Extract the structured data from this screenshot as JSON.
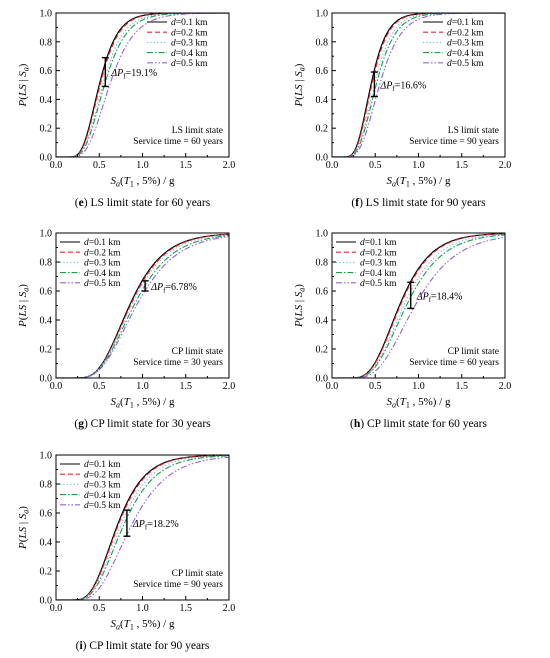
{
  "chart_data": [
    {
      "type": "line",
      "panel_letter": "e",
      "caption": "LS limit state for 60 years",
      "ylabel": "P(LS | Sa)",
      "xlabel": "Sa(T1 , 5%) / g",
      "xlim": [
        0,
        2
      ],
      "ylim": [
        0,
        1
      ],
      "xticks": [
        "0.0",
        "0.5",
        "1.0",
        "1.5",
        "2.0"
      ],
      "yticks": [
        "0.0",
        "0.2",
        "0.4",
        "0.6",
        "0.8",
        "1.0"
      ],
      "legend_position": "top-right",
      "series": [
        {
          "name": "d=0.1 km",
          "color": "#000000",
          "dash": "solid",
          "median": 0.5,
          "beta": 0.33
        },
        {
          "name": "d=0.2 km",
          "color": "#e8262b",
          "dash": "dashed",
          "median": 0.51,
          "beta": 0.33
        },
        {
          "name": "d=0.3 km",
          "color": "#5bc4e6",
          "dash": "dotted",
          "median": 0.54,
          "beta": 0.34
        },
        {
          "name": "d=0.4 km",
          "color": "#1a9e48",
          "dash": "dashdot",
          "median": 0.56,
          "beta": 0.35
        },
        {
          "name": "d=0.5 km",
          "color": "#9b5de5",
          "dash": "dashdotdot",
          "median": 0.62,
          "beta": 0.36
        }
      ],
      "annotation": {
        "label": "ΔPf=19.1%",
        "x": 0.57,
        "y_low": 0.49,
        "y_high": 0.69
      },
      "note_lines": [
        "LS limit state",
        "Service time = 60 years"
      ]
    },
    {
      "type": "line",
      "panel_letter": "f",
      "caption": "LS limit state for 90 years",
      "ylabel": "P(LS | Sa)",
      "xlabel": "Sa(T1 , 5%) / g",
      "xlim": [
        0,
        2
      ],
      "ylim": [
        0,
        1
      ],
      "xticks": [
        "0.0",
        "0.5",
        "1.0",
        "1.5",
        "2.0"
      ],
      "yticks": [
        "0.0",
        "0.2",
        "0.4",
        "0.6",
        "0.8",
        "1.0"
      ],
      "legend_position": "top-right",
      "series": [
        {
          "name": "d=0.1 km",
          "color": "#000000",
          "dash": "solid",
          "median": 0.45,
          "beta": 0.32
        },
        {
          "name": "d=0.2 km",
          "color": "#e8262b",
          "dash": "dashed",
          "median": 0.46,
          "beta": 0.32
        },
        {
          "name": "d=0.3 km",
          "color": "#5bc4e6",
          "dash": "dotted",
          "median": 0.49,
          "beta": 0.33
        },
        {
          "name": "d=0.4 km",
          "color": "#1a9e48",
          "dash": "dashdot",
          "median": 0.51,
          "beta": 0.34
        },
        {
          "name": "d=0.5 km",
          "color": "#9b5de5",
          "dash": "dashdotdot",
          "median": 0.55,
          "beta": 0.35
        }
      ],
      "annotation": {
        "label": "ΔPf=16.6%",
        "x": 0.49,
        "y_low": 0.42,
        "y_high": 0.59
      },
      "note_lines": [
        "LS limit state",
        "Service time = 90 years"
      ]
    },
    {
      "type": "line",
      "panel_letter": "g",
      "caption": "CP limit state for 30 years",
      "ylabel": "P(LS | Sa)",
      "xlabel": "Sa(T1 , 5%) / g",
      "xlim": [
        0,
        2
      ],
      "ylim": [
        0,
        1
      ],
      "xticks": [
        "0.0",
        "0.5",
        "1.0",
        "1.5",
        "2.0"
      ],
      "yticks": [
        "0.0",
        "0.2",
        "0.4",
        "0.6",
        "0.8",
        "1.0"
      ],
      "legend_position": "top-left",
      "series": [
        {
          "name": "d=0.1 km",
          "color": "#000000",
          "dash": "solid",
          "median": 0.85,
          "beta": 0.36
        },
        {
          "name": "d=0.2 km",
          "color": "#e8262b",
          "dash": "dashed",
          "median": 0.86,
          "beta": 0.36
        },
        {
          "name": "d=0.3 km",
          "color": "#5bc4e6",
          "dash": "dotted",
          "median": 0.87,
          "beta": 0.37
        },
        {
          "name": "d=0.4 km",
          "color": "#1a9e48",
          "dash": "dashdot",
          "median": 0.9,
          "beta": 0.38
        },
        {
          "name": "d=0.5 km",
          "color": "#9b5de5",
          "dash": "dashdotdot",
          "median": 0.93,
          "beta": 0.39
        }
      ],
      "annotation": {
        "label": "ΔPf=6.78%",
        "x": 1.03,
        "y_low": 0.6,
        "y_high": 0.67
      },
      "note_lines": [
        "CP limit state",
        "Service time = 30 years"
      ]
    },
    {
      "type": "line",
      "panel_letter": "h",
      "caption": "CP limit state for 60 years",
      "ylabel": "P(LS | Sa)",
      "xlabel": "Sa(T1 , 5%) / g",
      "xlim": [
        0,
        2
      ],
      "ylim": [
        0,
        1
      ],
      "xticks": [
        "0.0",
        "0.5",
        "1.0",
        "1.5",
        "2.0"
      ],
      "yticks": [
        "0.0",
        "0.2",
        "0.4",
        "0.6",
        "0.8",
        "1.0"
      ],
      "legend_position": "top-left",
      "series": [
        {
          "name": "d=0.1 km",
          "color": "#000000",
          "dash": "solid",
          "median": 0.78,
          "beta": 0.36
        },
        {
          "name": "d=0.2 km",
          "color": "#e8262b",
          "dash": "dashed",
          "median": 0.79,
          "beta": 0.36
        },
        {
          "name": "d=0.3 km",
          "color": "#5bc4e6",
          "dash": "dotted",
          "median": 0.83,
          "beta": 0.37
        },
        {
          "name": "d=0.4 km",
          "color": "#1a9e48",
          "dash": "dashdot",
          "median": 0.86,
          "beta": 0.38
        },
        {
          "name": "d=0.5 km",
          "color": "#9b5de5",
          "dash": "dashdotdot",
          "median": 0.96,
          "beta": 0.39
        }
      ],
      "annotation": {
        "label": "ΔPf=18.4%",
        "x": 0.91,
        "y_low": 0.48,
        "y_high": 0.66
      },
      "note_lines": [
        "CP limit state",
        "Service time = 60 years"
      ]
    },
    {
      "type": "line",
      "panel_letter": "i",
      "caption": "CP limit state for 90 years",
      "ylabel": "P(LS | Sa)",
      "xlabel": "Sa(T1 , 5%) / g",
      "xlim": [
        0,
        2
      ],
      "ylim": [
        0,
        1
      ],
      "xticks": [
        "0.0",
        "0.5",
        "1.0",
        "1.5",
        "2.0"
      ],
      "yticks": [
        "0.0",
        "0.2",
        "0.4",
        "0.6",
        "0.8",
        "1.0"
      ],
      "legend_position": "top-left",
      "series": [
        {
          "name": "d=0.1 km",
          "color": "#000000",
          "dash": "solid",
          "median": 0.7,
          "beta": 0.36
        },
        {
          "name": "d=0.2 km",
          "color": "#e8262b",
          "dash": "dashed",
          "median": 0.71,
          "beta": 0.36
        },
        {
          "name": "d=0.3 km",
          "color": "#5bc4e6",
          "dash": "dotted",
          "median": 0.74,
          "beta": 0.37
        },
        {
          "name": "d=0.4 km",
          "color": "#1a9e48",
          "dash": "dashdot",
          "median": 0.77,
          "beta": 0.38
        },
        {
          "name": "d=0.5 km",
          "color": "#9b5de5",
          "dash": "dashdotdot",
          "median": 0.86,
          "beta": 0.39
        }
      ],
      "annotation": {
        "label": "ΔPf=18.2%",
        "x": 0.82,
        "y_low": 0.44,
        "y_high": 0.62
      },
      "note_lines": [
        "CP limit state",
        "Service time = 90 years"
      ]
    }
  ]
}
